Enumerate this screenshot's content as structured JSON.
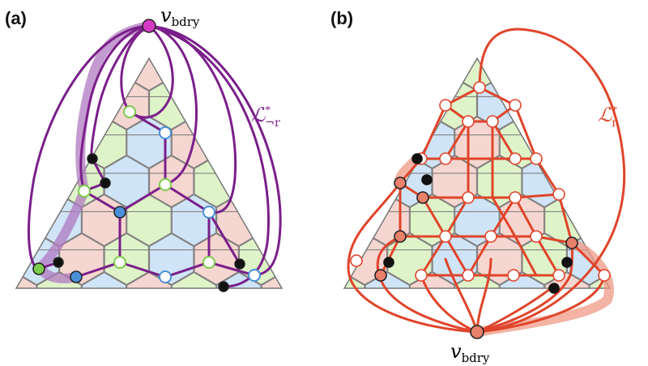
{
  "panel_a": {
    "label": "(a)",
    "vertex_label": "v",
    "vertex_label_sub": "bdry",
    "loop_label": "ℒ",
    "loop_label_sup": "*",
    "loop_label_sub": "¬r"
  },
  "panel_b": {
    "label": "(b)",
    "vertex_label": "v",
    "vertex_label_sub": "bdry",
    "loop_label": "ℒ",
    "loop_label_sup": "*",
    "loop_label_sub": "r"
  },
  "colors": {
    "hex_red": "#f6d6d0",
    "hex_green": "#dff3c9",
    "hex_blue": "#cfe4f6",
    "grid_line": "#777777",
    "purple": "#7a1f8a",
    "purple_highlight": "#b07ac0",
    "magenta_vertex": "#d63ac4",
    "red": "#e0442a",
    "red_highlight": "#f09a85",
    "salmon_vertex": "#e8806a",
    "green_vertex": "#7ccc4c",
    "blue_vertex": "#4a90d9",
    "black": "#111111"
  }
}
